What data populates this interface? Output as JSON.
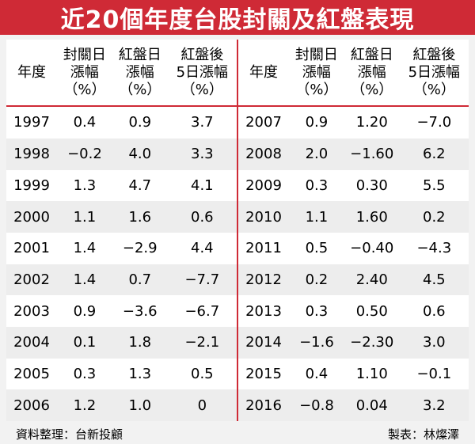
{
  "title": "近20個年度台股封關及紅盤表現",
  "headers": {
    "year": "年度",
    "closing": [
      "封關日",
      "漲幅",
      "（%）"
    ],
    "opening": [
      "紅盤日",
      "漲幅",
      "（%）"
    ],
    "after5": [
      "紅盤後",
      "5日漲幅",
      "（%）"
    ]
  },
  "left_rows": [
    {
      "year": "1997",
      "close": "0.4",
      "open": "0.9",
      "after": "3.7"
    },
    {
      "year": "1998",
      "close": "−0.2",
      "open": "4.0",
      "after": "3.3"
    },
    {
      "year": "1999",
      "close": "1.3",
      "open": "4.7",
      "after": "4.1"
    },
    {
      "year": "2000",
      "close": "1.1",
      "open": "1.6",
      "after": "0.6"
    },
    {
      "year": "2001",
      "close": "1.4",
      "open": "−2.9",
      "after": "4.4"
    },
    {
      "year": "2002",
      "close": "1.4",
      "open": "0.7",
      "after": "−7.7"
    },
    {
      "year": "2003",
      "close": "0.9",
      "open": "−3.6",
      "after": "−6.7"
    },
    {
      "year": "2004",
      "close": "0.1",
      "open": "1.8",
      "after": "−2.1"
    },
    {
      "year": "2005",
      "close": "0.3",
      "open": "1.3",
      "after": "0.5"
    },
    {
      "year": "2006",
      "close": "1.2",
      "open": "1.0",
      "after": "0"
    }
  ],
  "right_rows": [
    {
      "year": "2007",
      "close": "0.9",
      "open": "1.20",
      "after": "−7.0"
    },
    {
      "year": "2008",
      "close": "2.0",
      "open": "−1.60",
      "after": "6.2"
    },
    {
      "year": "2009",
      "close": "0.3",
      "open": "0.30",
      "after": "5.5"
    },
    {
      "year": "2010",
      "close": "1.1",
      "open": "1.60",
      "after": "0.2"
    },
    {
      "year": "2011",
      "close": "0.5",
      "open": "−0.40",
      "after": "−4.3"
    },
    {
      "year": "2012",
      "close": "0.2",
      "open": "2.40",
      "after": "4.5"
    },
    {
      "year": "2013",
      "close": "0.3",
      "open": "0.50",
      "after": "0.6"
    },
    {
      "year": "2014",
      "close": "−1.6",
      "open": "−2.30",
      "after": "3.0"
    },
    {
      "year": "2015",
      "close": "0.4",
      "open": "1.10",
      "after": "−0.1"
    },
    {
      "year": "2016",
      "close": "−0.8",
      "open": "0.04",
      "after": "3.2"
    }
  ],
  "footer": {
    "source": "資料整理：台新投顧",
    "maker": "製表：林燦澤"
  },
  "colors": {
    "accent": "#cf2a36",
    "row_alt": "#ededed"
  }
}
